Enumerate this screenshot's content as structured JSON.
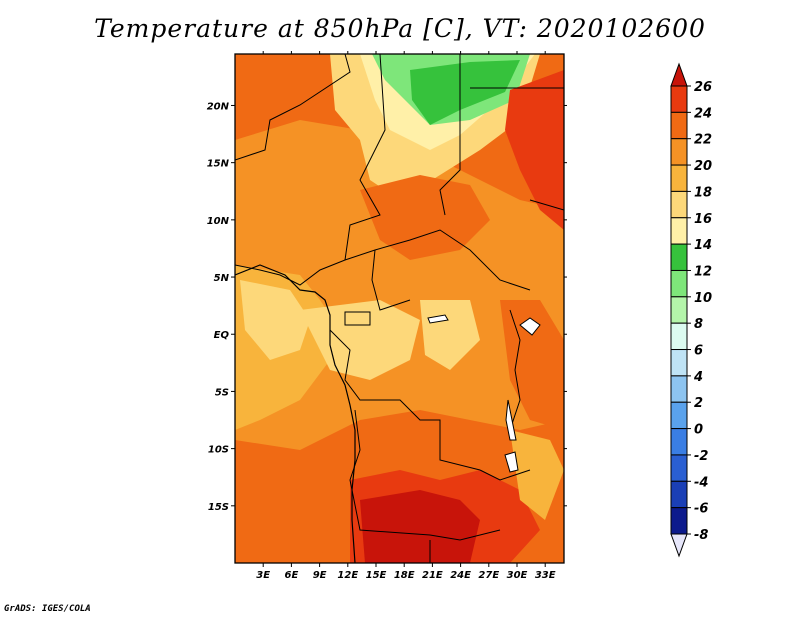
{
  "title": "Temperature at 850hPa [C], VT: 2020102600",
  "credit": "GrADS: IGES/COLA",
  "map": {
    "lon_range": [
      0,
      35
    ],
    "lat_range": [
      -20,
      24.5
    ],
    "lon_ticks": [
      "3E",
      "6E",
      "9E",
      "12E",
      "15E",
      "18E",
      "21E",
      "24E",
      "27E",
      "30E",
      "33E"
    ],
    "lon_values": [
      3,
      6,
      9,
      12,
      15,
      18,
      21,
      24,
      27,
      30,
      33
    ],
    "lat_ticks": [
      "20N",
      "15N",
      "10N",
      "5N",
      "EQ",
      "5S",
      "10S",
      "15S"
    ],
    "lat_values": [
      20,
      15,
      10,
      5,
      0,
      -5,
      -10,
      -15
    ]
  },
  "colorbar": {
    "levels": [
      "26",
      "24",
      "22",
      "20",
      "18",
      "16",
      "14",
      "12",
      "10",
      "8",
      "6",
      "4",
      "2",
      "0",
      "-2",
      "-4",
      "-6",
      "-8"
    ],
    "colors": [
      "#c8140a",
      "#e83a10",
      "#f06a14",
      "#f59225",
      "#f8b43c",
      "#fdd87a",
      "#fff0a8",
      "#36c23c",
      "#7ee67a",
      "#b4f5aa",
      "#dcfbf0",
      "#bfe3f5",
      "#8dc4f0",
      "#5aa2ec",
      "#3a7ee4",
      "#2a5fd2",
      "#1a3fb6",
      "#0c1a8c",
      "#e6e6fa"
    ]
  }
}
